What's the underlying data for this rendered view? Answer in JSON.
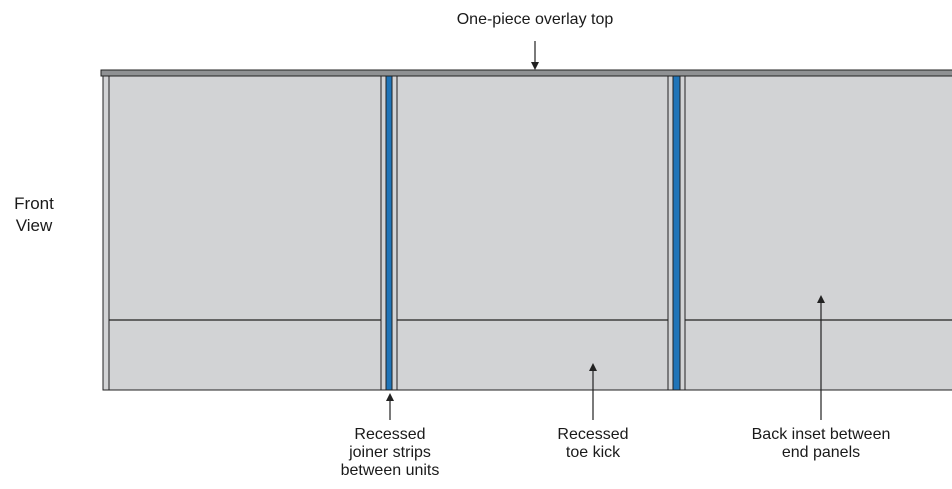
{
  "view_label": {
    "line1": "Front",
    "line2": "View"
  },
  "callouts": {
    "top": "One-piece overlay top",
    "joiner": {
      "line1": "Recessed",
      "line2": "joiner strips",
      "line3": "between units"
    },
    "toe_kick": {
      "line1": "Recessed",
      "line2": "toe kick"
    },
    "back_inset": {
      "line1": "Back inset between",
      "line2": "end panels"
    }
  },
  "colors": {
    "panel_fill": "#d2d3d5",
    "top_fill": "#8f9193",
    "joiner_strip": "#1f74b8",
    "outline": "#222222"
  }
}
